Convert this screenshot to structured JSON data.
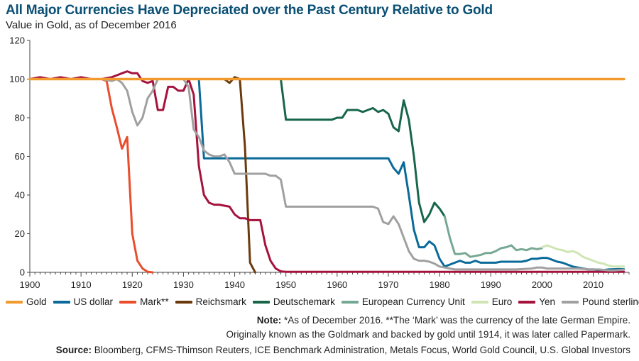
{
  "header": {
    "title": "All Major Currencies Have Depreciated over the Past Century Relative to Gold",
    "subtitle": "Value in Gold, as of December 2016"
  },
  "footer": {
    "note_label": "Note:",
    "note_line1": "*As of December 2016. **The ‘Mark’ was the currency of the late German Empire.",
    "note_line2": "Originally known as the Goldmark and backed by gold until 1914, it was later called Papermark.",
    "source_label": "Source:",
    "source_text": "Bloomberg, CFMS-Thimson Reuters, ICE Benchmark Administration, Metals Focus, World Gold Council, U.S. Global Investors"
  },
  "chart_data": {
    "type": "line",
    "title": "All Major Currencies Have Depreciated over the Past Century Relative to Gold",
    "subtitle": "Value in Gold, as of December 2016",
    "xlabel": "",
    "ylabel": "",
    "xlim": [
      1900,
      2017
    ],
    "ylim": [
      0,
      120
    ],
    "x_ticks": [
      1900,
      1910,
      1920,
      1930,
      1940,
      1950,
      1960,
      1970,
      1980,
      1990,
      2000,
      2010
    ],
    "y_ticks": [
      0,
      20,
      40,
      60,
      80,
      100,
      120
    ],
    "grid": false,
    "legend_position": "bottom",
    "series": [
      {
        "name": "Gold",
        "color": "#f29a2e",
        "points": [
          [
            1900,
            100
          ],
          [
            2016,
            100
          ]
        ]
      },
      {
        "name": "US dollar",
        "color": "#0a6a9a",
        "points": [
          [
            1900,
            100
          ],
          [
            1933,
            100
          ],
          [
            1934,
            59
          ],
          [
            1970,
            59
          ],
          [
            1971,
            54
          ],
          [
            1972,
            51
          ],
          [
            1973,
            57
          ],
          [
            1974,
            40
          ],
          [
            1975,
            22
          ],
          [
            1976,
            13
          ],
          [
            1977,
            13
          ],
          [
            1978,
            16
          ],
          [
            1979,
            14
          ],
          [
            1980,
            7
          ],
          [
            1981,
            3
          ],
          [
            1982,
            4
          ],
          [
            1983,
            5
          ],
          [
            1984,
            6
          ],
          [
            1985,
            5
          ],
          [
            1986,
            5
          ],
          [
            1987,
            6
          ],
          [
            1988,
            5
          ],
          [
            1989,
            5
          ],
          [
            1990,
            5
          ],
          [
            1991,
            5
          ],
          [
            1992,
            5.5
          ],
          [
            1993,
            5.5
          ],
          [
            1994,
            5.5
          ],
          [
            1995,
            5.5
          ],
          [
            1996,
            5.5
          ],
          [
            1997,
            6
          ],
          [
            1998,
            7
          ],
          [
            1999,
            7
          ],
          [
            2000,
            7.5
          ],
          [
            2001,
            7.5
          ],
          [
            2002,
            6.5
          ],
          [
            2003,
            5.5
          ],
          [
            2004,
            5
          ],
          [
            2005,
            4
          ],
          [
            2006,
            3
          ],
          [
            2007,
            2.5
          ],
          [
            2008,
            2
          ],
          [
            2009,
            1.5
          ],
          [
            2010,
            1.5
          ],
          [
            2011,
            1.2
          ],
          [
            2012,
            1.2
          ],
          [
            2013,
            1.5
          ],
          [
            2014,
            1.6
          ],
          [
            2015,
            1.7
          ],
          [
            2016,
            1.6
          ]
        ]
      },
      {
        "name": "Mark**",
        "color": "#ea4d2c",
        "points": [
          [
            1900,
            100
          ],
          [
            1914,
            100
          ],
          [
            1915,
            99
          ],
          [
            1916,
            85
          ],
          [
            1917,
            75
          ],
          [
            1918,
            64
          ],
          [
            1919,
            70
          ],
          [
            1920,
            20
          ],
          [
            1921,
            6
          ],
          [
            1922,
            2
          ],
          [
            1923,
            0.3
          ],
          [
            1924,
            0
          ]
        ]
      },
      {
        "name": "Reichsmark",
        "color": "#6b3a0c",
        "points": [
          [
            1924,
            100
          ],
          [
            1938,
            100
          ],
          [
            1939,
            98
          ],
          [
            1940,
            101
          ],
          [
            1941,
            100
          ],
          [
            1942,
            65
          ],
          [
            1943,
            5
          ],
          [
            1944,
            0
          ]
        ]
      },
      {
        "name": "Deutschemark",
        "color": "#18664a",
        "points": [
          [
            1949,
            100
          ],
          [
            1950,
            79
          ],
          [
            1951,
            79
          ],
          [
            1952,
            79
          ],
          [
            1953,
            79
          ],
          [
            1954,
            79
          ],
          [
            1955,
            79
          ],
          [
            1956,
            79
          ],
          [
            1957,
            79
          ],
          [
            1958,
            79
          ],
          [
            1959,
            79
          ],
          [
            1960,
            80
          ],
          [
            1961,
            80
          ],
          [
            1962,
            84
          ],
          [
            1963,
            84
          ],
          [
            1964,
            84
          ],
          [
            1965,
            83
          ],
          [
            1966,
            84
          ],
          [
            1967,
            85
          ],
          [
            1968,
            83
          ],
          [
            1969,
            84
          ],
          [
            1970,
            82
          ],
          [
            1971,
            75
          ],
          [
            1972,
            73
          ],
          [
            1973,
            89
          ],
          [
            1974,
            79
          ],
          [
            1975,
            60
          ],
          [
            1976,
            36
          ],
          [
            1977,
            26
          ],
          [
            1978,
            30
          ],
          [
            1979,
            36
          ],
          [
            1980,
            33
          ],
          [
            1981,
            29
          ]
        ]
      },
      {
        "name": "European Currency Unit",
        "color": "#76a893",
        "points": [
          [
            1981,
            29
          ],
          [
            1982,
            18
          ],
          [
            1983,
            9.5
          ],
          [
            1984,
            9.5
          ],
          [
            1985,
            10
          ],
          [
            1986,
            8
          ],
          [
            1987,
            8.5
          ],
          [
            1988,
            9
          ],
          [
            1989,
            10
          ],
          [
            1990,
            10
          ],
          [
            1991,
            11
          ],
          [
            1992,
            12.5
          ],
          [
            1993,
            13
          ],
          [
            1994,
            14
          ],
          [
            1995,
            11.5
          ],
          [
            1996,
            12
          ],
          [
            1997,
            11.5
          ],
          [
            1998,
            12.5
          ],
          [
            1999,
            12
          ],
          [
            2000,
            12.5
          ]
        ]
      },
      {
        "name": "Euro",
        "color": "#cfe5b3",
        "points": [
          [
            2000,
            13
          ],
          [
            2001,
            14
          ],
          [
            2002,
            13
          ],
          [
            2003,
            12
          ],
          [
            2004,
            11.5
          ],
          [
            2005,
            10.5
          ],
          [
            2006,
            11
          ],
          [
            2007,
            10
          ],
          [
            2008,
            8
          ],
          [
            2009,
            7
          ],
          [
            2010,
            6
          ],
          [
            2011,
            5
          ],
          [
            2012,
            4.5
          ],
          [
            2013,
            3.5
          ],
          [
            2014,
            3
          ],
          [
            2015,
            3
          ],
          [
            2016,
            3
          ]
        ]
      },
      {
        "name": "Yen",
        "color": "#a5123d",
        "points": [
          [
            1900,
            100
          ],
          [
            1902,
            101
          ],
          [
            1904,
            100
          ],
          [
            1906,
            101
          ],
          [
            1908,
            100
          ],
          [
            1910,
            101
          ],
          [
            1912,
            100
          ],
          [
            1914,
            100
          ],
          [
            1916,
            101
          ],
          [
            1917,
            102
          ],
          [
            1918,
            103
          ],
          [
            1919,
            104
          ],
          [
            1920,
            103
          ],
          [
            1921,
            103
          ],
          [
            1922,
            99
          ],
          [
            1923,
            98
          ],
          [
            1924,
            99
          ],
          [
            1925,
            84
          ],
          [
            1926,
            84
          ],
          [
            1927,
            96
          ],
          [
            1928,
            96
          ],
          [
            1929,
            94
          ],
          [
            1930,
            94
          ],
          [
            1931,
            100
          ],
          [
            1932,
            92
          ],
          [
            1933,
            55
          ],
          [
            1934,
            40
          ],
          [
            1935,
            36
          ],
          [
            1936,
            35
          ],
          [
            1937,
            35
          ],
          [
            1938,
            34.5
          ],
          [
            1939,
            34
          ],
          [
            1940,
            30
          ],
          [
            1941,
            28
          ],
          [
            1942,
            28
          ],
          [
            1943,
            27
          ],
          [
            1944,
            27
          ],
          [
            1945,
            27
          ],
          [
            1946,
            14
          ],
          [
            1947,
            6
          ],
          [
            1948,
            2
          ],
          [
            1949,
            0.5
          ],
          [
            1950,
            0.3
          ],
          [
            1970,
            0.3
          ],
          [
            1973,
            0.3
          ],
          [
            1980,
            0.3
          ],
          [
            1990,
            0.3
          ],
          [
            2000,
            0.3
          ],
          [
            2016,
            0.3
          ]
        ]
      },
      {
        "name": "Pound sterling",
        "color": "#a0a0a0",
        "points": [
          [
            1900,
            100
          ],
          [
            1914,
            100
          ],
          [
            1916,
            99
          ],
          [
            1917,
            100
          ],
          [
            1918,
            98
          ],
          [
            1919,
            94
          ],
          [
            1920,
            83
          ],
          [
            1921,
            76
          ],
          [
            1922,
            80
          ],
          [
            1923,
            90
          ],
          [
            1924,
            94
          ],
          [
            1925,
            100
          ],
          [
            1926,
            100
          ],
          [
            1927,
            100
          ],
          [
            1928,
            100
          ],
          [
            1929,
            100
          ],
          [
            1930,
            100
          ],
          [
            1931,
            96
          ],
          [
            1932,
            74
          ],
          [
            1933,
            70
          ],
          [
            1934,
            63
          ],
          [
            1935,
            61
          ],
          [
            1936,
            60
          ],
          [
            1937,
            60
          ],
          [
            1938,
            61
          ],
          [
            1939,
            57
          ],
          [
            1940,
            51
          ],
          [
            1941,
            51
          ],
          [
            1942,
            51
          ],
          [
            1943,
            51
          ],
          [
            1944,
            51
          ],
          [
            1945,
            51
          ],
          [
            1946,
            51
          ],
          [
            1947,
            50
          ],
          [
            1948,
            50
          ],
          [
            1949,
            48
          ],
          [
            1950,
            34
          ],
          [
            1955,
            34
          ],
          [
            1960,
            34
          ],
          [
            1965,
            34
          ],
          [
            1966,
            34
          ],
          [
            1967,
            34
          ],
          [
            1968,
            33
          ],
          [
            1969,
            26
          ],
          [
            1970,
            25
          ],
          [
            1971,
            29
          ],
          [
            1972,
            25
          ],
          [
            1973,
            18
          ],
          [
            1974,
            11
          ],
          [
            1975,
            7
          ],
          [
            1976,
            6
          ],
          [
            1977,
            6
          ],
          [
            1978,
            5.5
          ],
          [
            1979,
            4.5
          ],
          [
            1980,
            3
          ],
          [
            1981,
            2.5
          ],
          [
            1982,
            2
          ],
          [
            1983,
            1.5
          ],
          [
            1984,
            1.5
          ],
          [
            1985,
            1.5
          ],
          [
            1990,
            1.5
          ],
          [
            1995,
            1.5
          ],
          [
            1998,
            2
          ],
          [
            1999,
            2.5
          ],
          [
            2000,
            2.5
          ],
          [
            2001,
            2
          ],
          [
            2002,
            2
          ],
          [
            2003,
            2
          ],
          [
            2004,
            2
          ],
          [
            2005,
            2
          ],
          [
            2006,
            2
          ],
          [
            2007,
            2
          ],
          [
            2008,
            1.8
          ],
          [
            2009,
            1.5
          ],
          [
            2010,
            1.5
          ],
          [
            2011,
            1.5
          ],
          [
            2012,
            1.3
          ],
          [
            2013,
            1
          ],
          [
            2014,
            1
          ],
          [
            2015,
            1.2
          ],
          [
            2016,
            1.4
          ]
        ]
      }
    ]
  }
}
